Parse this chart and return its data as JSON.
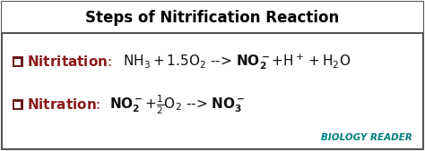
{
  "title": "Steps of Nitrification Reaction",
  "title_fontsize": 12,
  "title_color": "#000000",
  "bg_color": "#ffffff",
  "border_color": "#555555",
  "header_bg": "#ffffff",
  "checkbox_color": "#6B1A1A",
  "label1": "Nitritation",
  "label2": "Nitration",
  "label_color": "#8B1A1A",
  "watermark": "BIOLOGY READER",
  "watermark_color1": "#008080",
  "watermark_color2": "#008080",
  "figsize": [
    4.74,
    1.69
  ],
  "dpi": 100
}
